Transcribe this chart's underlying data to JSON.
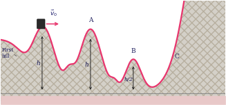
{
  "bg_color": "#ffffff",
  "track_color": "#e8356d",
  "fill_color": "#d4d0c8",
  "ground_color": "#e8c8c8",
  "arrow_color": "#e8356d",
  "text_color": "#1a1a6a",
  "label_color": "#1a1a5a",
  "figsize": [
    3.27,
    1.53
  ],
  "dpi": 100,
  "first_hill_label": "First\nhill",
  "v0_label": "$\\vec{v}_0$",
  "A_label": "A",
  "B_label": "B",
  "C_label": "C",
  "h_label": "h",
  "h2_label": "h/2",
  "xlim": [
    -0.5,
    9.5
  ],
  "ylim": [
    -0.18,
    1.45
  ]
}
